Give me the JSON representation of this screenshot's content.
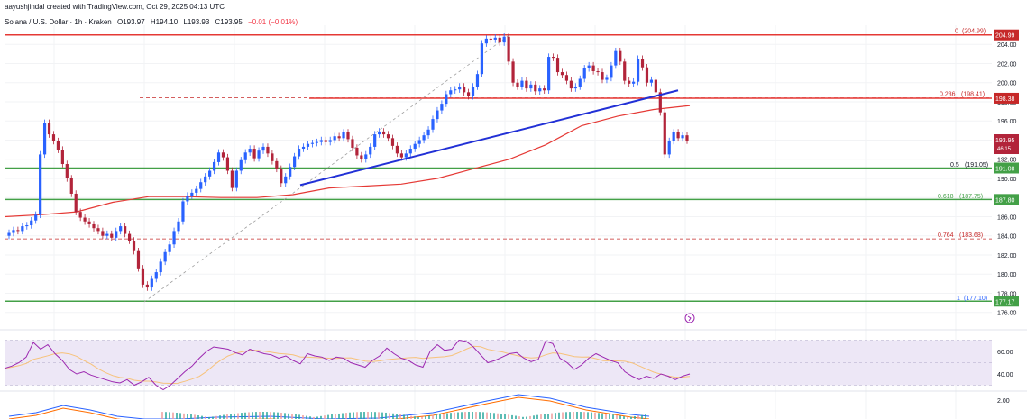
{
  "header": {
    "created_by": "aayushjindal created with TradingView.com, Oct 29, 2025 04:13 UTC"
  },
  "symbol": {
    "name": "Solana / U.S. Dollar · 1h · Kraken",
    "open": "O193.97",
    "high": "H194.10",
    "low": "L193.93",
    "close": "C193.95",
    "change": "−0.01 (−0.01%)"
  },
  "colors": {
    "up": "#2962ff",
    "down": "#b2243a",
    "ma": "#e53935",
    "support": "#43a047",
    "trend": "#2130d6",
    "rsi": "#9c27b0",
    "rsi_bg": "#ede7f6",
    "fib_level": "#c62828"
  },
  "price_axis": {
    "ticks": [
      "204.00",
      "202.00",
      "200.00",
      "198.00",
      "196.00",
      "194.00",
      "192.00",
      "190.00",
      "188.00",
      "186.00",
      "184.00",
      "182.00",
      "180.00",
      "178.00",
      "176.00"
    ],
    "current_price": "193.95",
    "countdown": "46:15",
    "tags": [
      {
        "text": "204.99",
        "color": "#c62828"
      },
      {
        "text": "198.38",
        "color": "#c62828"
      },
      {
        "text": "191.08",
        "color": "#43a047"
      },
      {
        "text": "187.80",
        "color": "#43a047"
      },
      {
        "text": "177.17",
        "color": "#43a047"
      }
    ]
  },
  "fib_labels": [
    {
      "ratio": "0",
      "price": "(204.99)"
    },
    {
      "ratio": "0.236",
      "price": "(198.41)"
    },
    {
      "ratio": "0.5",
      "price": "(191.05)"
    },
    {
      "ratio": "0.618",
      "price": "(187.75)"
    },
    {
      "ratio": "0.764",
      "price": "(183.68)"
    },
    {
      "ratio": "1",
      "price": "(177.10)"
    }
  ],
  "rsi_axis": {
    "ticks": [
      "60.00",
      "40.00"
    ]
  },
  "macd_axis": {
    "ticks": [
      "2.00"
    ]
  },
  "chart_data": {
    "type": "candlestick",
    "timeframe": "1h",
    "close_series": [
      184.3,
      184.6,
      184.5,
      185.0,
      185.1,
      185.6,
      186.2,
      192.5,
      195.8,
      194.6,
      193.9,
      193.0,
      191.5,
      190.0,
      188.4,
      186.5,
      185.9,
      185.5,
      185.2,
      184.8,
      184.5,
      184.0,
      184.2,
      183.8,
      184.5,
      185.0,
      184.2,
      183.5,
      182.4,
      180.6,
      178.9,
      178.6,
      179.5,
      180.2,
      181.3,
      182.3,
      183.1,
      184.5,
      185.5,
      187.6,
      188.2,
      188.5,
      188.9,
      189.6,
      190.2,
      190.8,
      191.7,
      192.7,
      192.2,
      190.8,
      189.0,
      190.8,
      191.9,
      192.7,
      193.1,
      192.1,
      192.9,
      193.3,
      192.6,
      191.8,
      191.0,
      189.5,
      190.2,
      191.2,
      192.3,
      193.1,
      193.3,
      193.6,
      193.7,
      193.8,
      194.0,
      193.8,
      194.0,
      194.4,
      194.2,
      194.8,
      194.1,
      193.2,
      192.4,
      192.0,
      192.5,
      193.3,
      194.6,
      194.9,
      194.6,
      194.2,
      193.4,
      192.6,
      192.2,
      192.6,
      193.1,
      193.6,
      194.0,
      194.5,
      195.1,
      196.2,
      197.1,
      197.8,
      198.8,
      199.2,
      199.3,
      199.6,
      199.0,
      198.6,
      199.6,
      200.9,
      204.1,
      204.6,
      204.5,
      204.7,
      204.2,
      204.8,
      202.2,
      200.0,
      199.6,
      200.2,
      199.4,
      199.8,
      199.1,
      199.4,
      199.2,
      202.7,
      202.6,
      201.1,
      200.8,
      200.2,
      199.4,
      199.6,
      200.4,
      201.5,
      201.8,
      201.2,
      201.1,
      200.3,
      200.5,
      201.8,
      203.3,
      202.2,
      200.2,
      199.9,
      200.1,
      202.5,
      201.6,
      200.0,
      200.3,
      199.0,
      196.9,
      192.5,
      193.9,
      194.8,
      194.2,
      194.5,
      193.95
    ],
    "moving_average": {
      "description": "red moving average line",
      "approx_values": [
        186.0,
        186.2,
        186.5,
        187.5,
        188.1,
        188.1,
        188.0,
        188.0,
        188.3,
        189.0,
        189.2,
        189.4,
        190.0,
        191.0,
        192.0,
        193.5,
        195.5,
        196.5,
        197.2,
        197.6
      ]
    },
    "horizontal_levels": [
      {
        "label": "204.99",
        "style": "resistance"
      },
      {
        "label": "198.38",
        "style": "resistance"
      },
      {
        "label": "191.08",
        "style": "support"
      },
      {
        "label": "187.80",
        "style": "support"
      },
      {
        "label": "177.17",
        "style": "support"
      }
    ],
    "fibonacci": [
      {
        "ratio": 0,
        "price": 204.99
      },
      {
        "ratio": 0.236,
        "price": 198.41
      },
      {
        "ratio": 0.5,
        "price": 191.05
      },
      {
        "ratio": 0.618,
        "price": 187.75
      },
      {
        "ratio": 0.764,
        "price": 183.68
      },
      {
        "ratio": 1,
        "price": 177.1
      }
    ],
    "trend_line": {
      "from_price": 189.3,
      "to_price": 199.2
    },
    "ylim": [
      175.5,
      206.0
    ],
    "rsi": [
      45,
      47,
      50,
      55,
      68,
      62,
      66,
      58,
      52,
      44,
      40,
      42,
      39,
      37,
      35,
      33,
      32,
      35,
      30,
      33,
      37,
      30,
      26,
      30,
      36,
      42,
      47,
      54,
      60,
      64,
      63,
      62,
      59,
      57,
      62,
      60,
      58,
      57,
      54,
      56,
      52,
      49,
      58,
      56,
      55,
      52,
      55,
      54,
      50,
      48,
      46,
      52,
      56,
      63,
      58,
      54,
      52,
      48,
      46,
      60,
      66,
      61,
      62,
      70,
      69,
      64,
      57,
      50,
      52,
      55,
      58,
      59,
      54,
      51,
      53,
      69,
      67,
      54,
      50,
      44,
      48,
      54,
      58,
      55,
      52,
      50,
      42,
      38,
      35,
      38,
      36,
      40,
      38,
      35,
      38,
      40
    ]
  }
}
